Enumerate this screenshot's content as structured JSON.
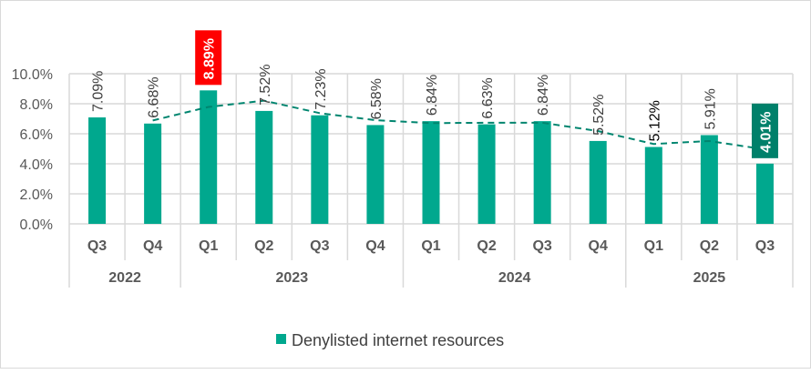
{
  "chart_data": {
    "type": "bar",
    "categories": [
      "Q3",
      "Q4",
      "Q1",
      "Q2",
      "Q3",
      "Q4",
      "Q1",
      "Q2",
      "Q3",
      "Q4",
      "Q1",
      "Q2",
      "Q3"
    ],
    "groups": [
      {
        "label": "2022",
        "count": 2
      },
      {
        "label": "2023",
        "count": 4
      },
      {
        "label": "2024",
        "count": 4
      },
      {
        "label": "2025",
        "count": 3
      }
    ],
    "series": [
      {
        "name": "Denylisted internet resources",
        "values": [
          7.09,
          6.68,
          8.89,
          7.52,
          7.23,
          6.58,
          6.84,
          6.63,
          6.84,
          5.52,
          5.12,
          5.91,
          4.01
        ],
        "color": "#00a88e"
      }
    ],
    "data_labels": [
      "7.09%",
      "6.68%",
      "8.89%",
      "7.52%",
      "7.23%",
      "6.58%",
      "6.84%",
      "6.63%",
      "6.84%",
      "5.52%",
      "5.12%",
      "5.91%",
      "4.01%"
    ],
    "highlighted_labels": [
      {
        "index": 2,
        "background": "#ff0000",
        "color": "#ffffff"
      },
      {
        "index": 12,
        "background": "#00806a",
        "color": "#ffffff"
      }
    ],
    "trendline": {
      "type": "2-period moving average",
      "style": "dashed",
      "color": "#00856f"
    },
    "yticks": [
      "0.0%",
      "2.0%",
      "4.0%",
      "6.0%",
      "8.0%",
      "10.0%"
    ],
    "ylim": [
      0,
      10
    ],
    "grid": true,
    "legend": "bottom"
  }
}
